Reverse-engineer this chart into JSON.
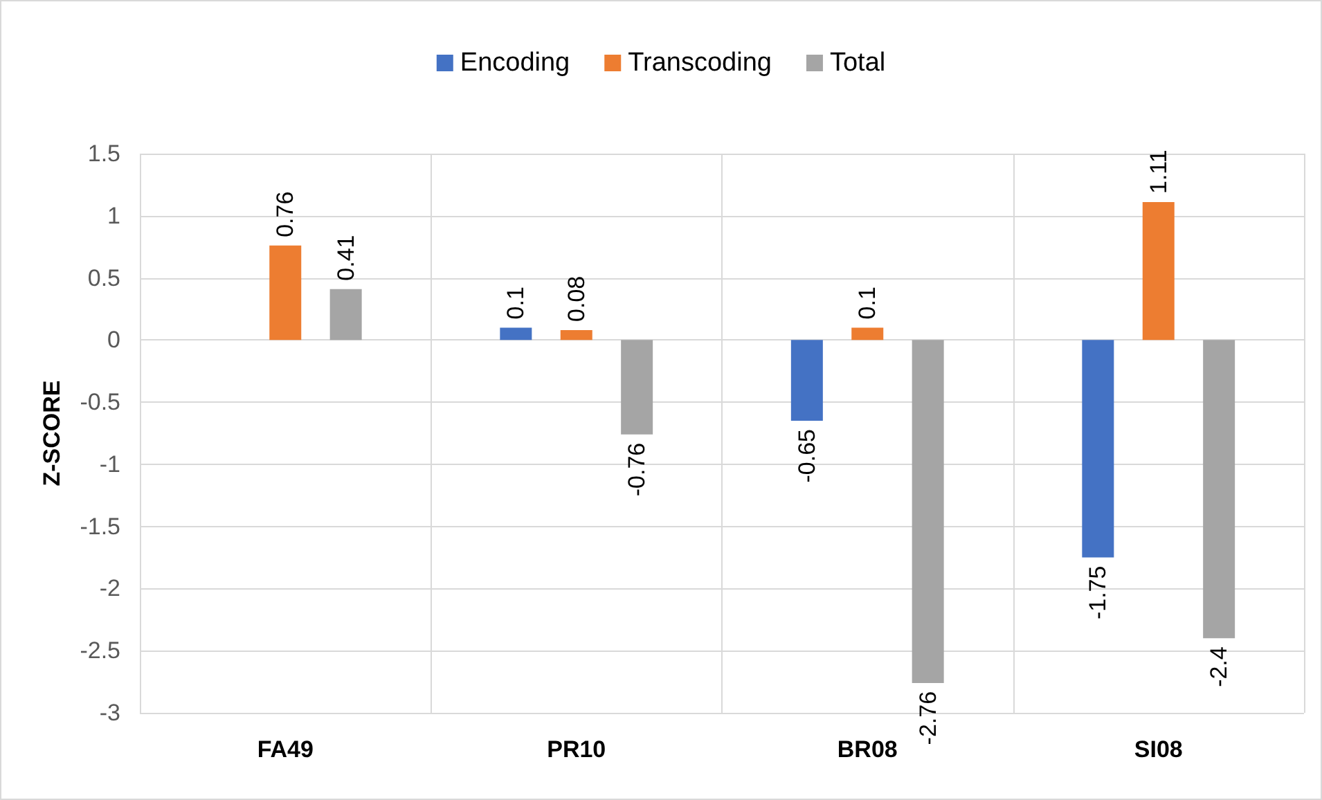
{
  "chart_data": {
    "type": "bar",
    "ylabel": "Z-SCORE",
    "categories": [
      "FA49",
      "PR10",
      "BR08",
      "SI08"
    ],
    "series": [
      {
        "name": "Encoding",
        "color": "#4472c4",
        "values": [
          null,
          0.1,
          -0.65,
          -1.75
        ]
      },
      {
        "name": "Transcoding",
        "color": "#ed7d31",
        "values": [
          0.76,
          0.08,
          0.1,
          1.11
        ]
      },
      {
        "name": "Total",
        "color": "#a5a5a5",
        "values": [
          0.41,
          -0.76,
          -2.76,
          -2.4
        ]
      }
    ],
    "ylim": [
      -3,
      1.5
    ],
    "yticks": [
      -3,
      -2.5,
      -2,
      -1.5,
      -1,
      -0.5,
      0,
      0.5,
      1,
      1.5
    ],
    "grid": true,
    "legend": "top",
    "data_labels": true
  }
}
